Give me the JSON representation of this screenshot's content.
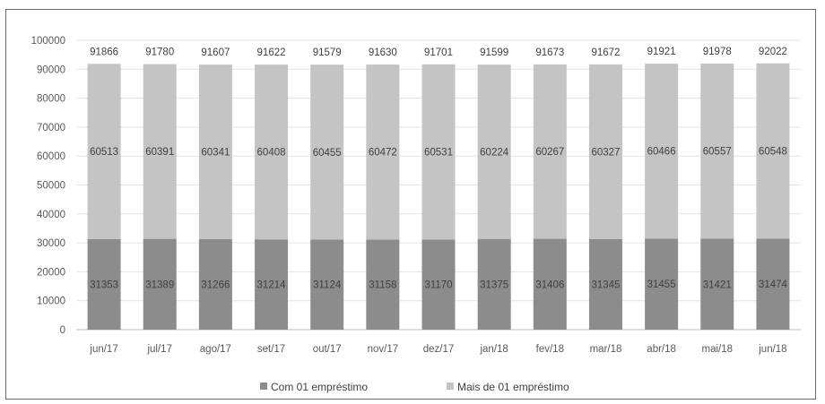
{
  "chart_data": {
    "type": "bar",
    "stacked": true,
    "categories": [
      "jun/17",
      "jul/17",
      "ago/17",
      "set/17",
      "out/17",
      "nov/17",
      "dez/17",
      "jan/18",
      "fev/18",
      "mar/18",
      "abr/18",
      "mai/18",
      "jun/18"
    ],
    "series": [
      {
        "name": "Com 01 empréstimo",
        "color": "#8c8c8c",
        "values": [
          31353,
          31389,
          31266,
          31214,
          31124,
          31158,
          31170,
          31375,
          31406,
          31345,
          31455,
          31421,
          31474
        ]
      },
      {
        "name": "Mais de 01 empréstimo",
        "color": "#c4c4c4",
        "values": [
          60513,
          60391,
          60341,
          60408,
          60455,
          60472,
          60531,
          60224,
          60267,
          60327,
          60466,
          60557,
          60548
        ]
      }
    ],
    "totals": [
      91866,
      91780,
      91607,
      91622,
      91579,
      91630,
      91701,
      91599,
      91673,
      91672,
      91921,
      91978,
      92022
    ],
    "ylim": [
      0,
      100000
    ],
    "yticks": [
      0,
      10000,
      20000,
      30000,
      40000,
      50000,
      60000,
      70000,
      80000,
      90000,
      100000
    ],
    "grid": true,
    "legend_position": "bottom-center"
  }
}
